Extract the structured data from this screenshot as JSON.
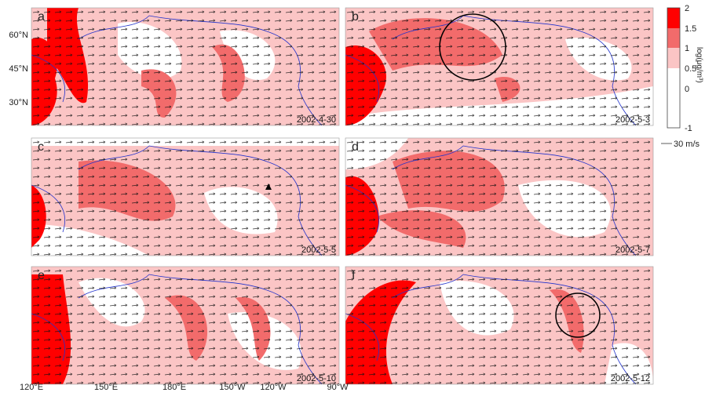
{
  "panels": [
    {
      "letter": "a",
      "date": "2002-4-30"
    },
    {
      "letter": "b",
      "date": "2002-5-3"
    },
    {
      "letter": "c",
      "date": "2002-5-5"
    },
    {
      "letter": "d",
      "date": "2002-5-7"
    },
    {
      "letter": "e",
      "date": "2002-5-10"
    },
    {
      "letter": "f",
      "date": "2002-5-12"
    }
  ],
  "latitude_labels": [
    "60°N",
    "45°N",
    "30°N"
  ],
  "longitude_labels": [
    "120°E",
    "150°E",
    "180°E",
    "150°W",
    "120°W",
    "90°W"
  ],
  "colorbar": {
    "label": "log(μg/m³)",
    "ticks": [
      "2",
      "1.5",
      "1",
      "0.5",
      "0",
      "-1"
    ]
  },
  "wind_scale": "30 m/s"
}
